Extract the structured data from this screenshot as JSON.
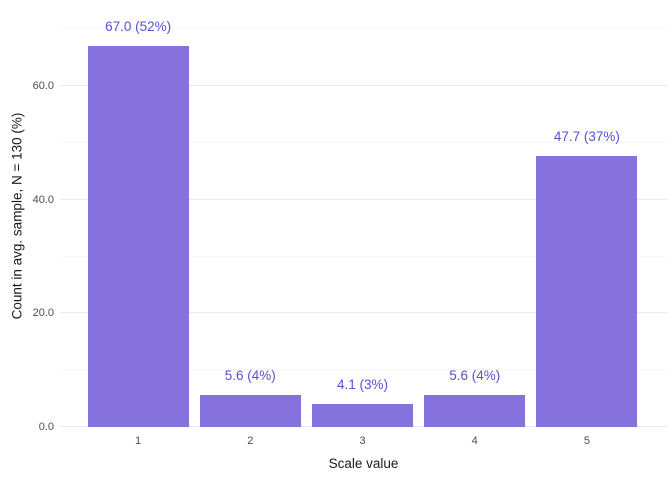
{
  "chart_data": {
    "type": "bar",
    "title": "",
    "xlabel": "Scale value",
    "ylabel": "Count in avg. sample, N = 130 (%)",
    "categories": [
      "1",
      "2",
      "3",
      "4",
      "5"
    ],
    "values": [
      67.0,
      5.6,
      4.1,
      5.6,
      47.7
    ],
    "bar_labels": [
      "67.0 (52%)",
      "5.6 (4%)",
      "4.1 (3%)",
      "5.6 (4%)",
      "47.7 (37%)"
    ],
    "percentages": [
      52,
      4,
      3,
      4,
      37
    ],
    "y_ticks": [
      {
        "label": "0.0",
        "value": 0
      },
      {
        "label": "20.0",
        "value": 20
      },
      {
        "label": "40.0",
        "value": 40
      },
      {
        "label": "60.0",
        "value": 60
      }
    ],
    "y_minor_ticks": [
      10,
      30,
      50,
      70
    ],
    "ylim": [
      0,
      74.3
    ],
    "grid": true,
    "legend": false,
    "colors": {
      "bar_fill": "#8672DC",
      "bar_label_text": "#5651D1",
      "axis_text": "#4D4D4D",
      "axis_title_text": "#1A1A1A",
      "grid_major": "#EBEBEB",
      "grid_minor": "#F5F5F5",
      "background": "#FFFFFF"
    }
  }
}
